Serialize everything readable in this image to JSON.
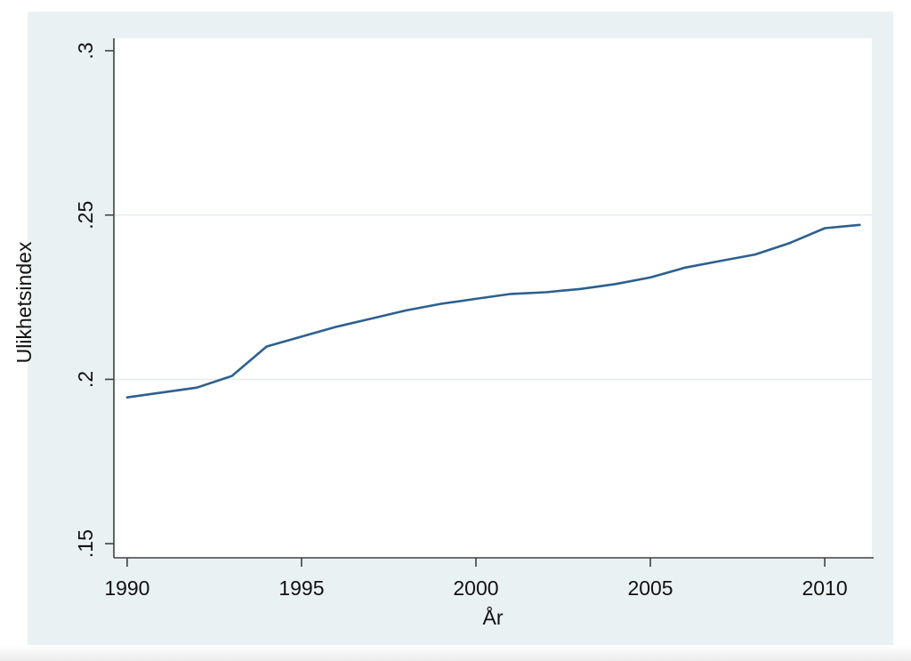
{
  "page": {
    "background": "#ffffff"
  },
  "chart": {
    "outer_background": "#eaf1f3",
    "plot_background": "#ffffff",
    "axis_color": "#404040",
    "grid_color": "#e2edf2",
    "line_color": "#2d608f",
    "text_color": "#111111"
  },
  "chart_data": {
    "type": "line",
    "title": "",
    "xlabel": "År",
    "ylabel": "Ulikhetsindex",
    "x": [
      1990,
      1991,
      1992,
      1993,
      1994,
      1995,
      1996,
      1997,
      1998,
      1999,
      2000,
      2001,
      2002,
      2003,
      2004,
      2005,
      2006,
      2007,
      2008,
      2009,
      2010,
      2011
    ],
    "y": [
      0.1945,
      0.196,
      0.1975,
      0.201,
      0.21,
      0.213,
      0.216,
      0.2185,
      0.221,
      0.223,
      0.2245,
      0.226,
      0.2265,
      0.2275,
      0.229,
      0.231,
      0.234,
      0.236,
      0.238,
      0.2415,
      0.246,
      0.247
    ],
    "series_name": "Ulikhetsindex",
    "x_ticks": [
      1990,
      1995,
      2000,
      2005,
      2010
    ],
    "x_tick_labels": [
      "1990",
      "1995",
      "2000",
      "2005",
      "2010"
    ],
    "y_ticks": [
      0.15,
      0.2,
      0.25,
      0.3
    ],
    "y_tick_labels": [
      ".15",
      ".2",
      ".25",
      ".3"
    ],
    "grid_values": [
      0.2,
      0.25
    ],
    "xlim": [
      1989.62,
      2011.35
    ],
    "ylim": [
      0.1457,
      0.3038
    ],
    "grid": true,
    "legend": "none"
  }
}
